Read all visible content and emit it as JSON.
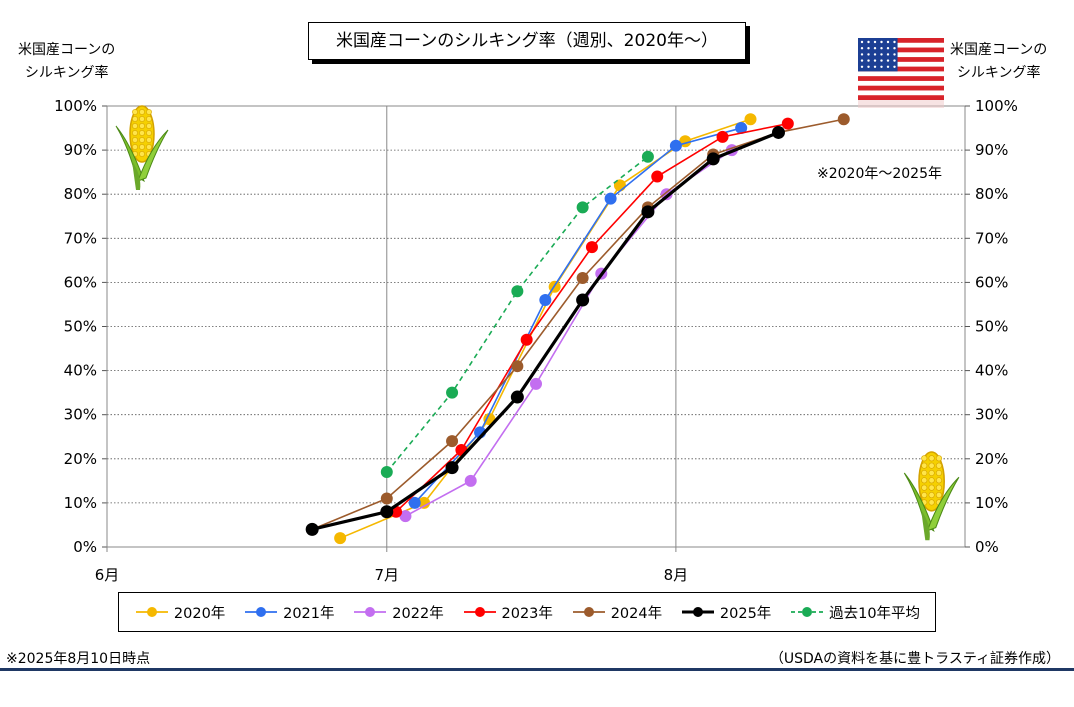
{
  "header": {
    "title": "米国産コーンのシルキング率（週別、2020年～）",
    "left_axis_title_line1": "米国産コーンの",
    "left_axis_title_line2": "シルキング率",
    "right_axis_title_line1": "米国産コーンの",
    "right_axis_title_line2": "シルキング率"
  },
  "annotations": {
    "range_note": "※2020年～2025年",
    "as_of": "※2025年8月10日時点",
    "source": "（USDAの資料を基に豊トラスティ証券作成）"
  },
  "icons": [
    "corn-icon",
    "us-flag-icon"
  ],
  "chart_data": {
    "type": "line",
    "x_axis": "date",
    "xlim": [
      "06-01",
      "09-01"
    ],
    "ylim": [
      0,
      100
    ],
    "y_ticks": [
      0,
      10,
      20,
      30,
      40,
      50,
      60,
      70,
      80,
      90,
      100
    ],
    "y_tick_labels": [
      "0%",
      "10%",
      "20%",
      "30%",
      "40%",
      "50%",
      "60%",
      "70%",
      "80%",
      "90%",
      "100%"
    ],
    "x_ticks": [
      "06-01",
      "07-01",
      "08-01"
    ],
    "x_tick_labels": [
      "6月",
      "7月",
      "8月"
    ],
    "grid": "horizontal dotted, vertical at month starts",
    "legend_position": "bottom",
    "series": [
      {
        "name": "2020年",
        "color": "#f5b800",
        "dashed": false,
        "bold": false,
        "points": [
          [
            "06-26",
            2
          ],
          [
            "07-05",
            10
          ],
          [
            "07-12",
            29
          ],
          [
            "07-19",
            59
          ],
          [
            "07-26",
            82
          ],
          [
            "08-02",
            92
          ],
          [
            "08-09",
            97
          ]
        ]
      },
      {
        "name": "2021年",
        "color": "#2f6fef",
        "dashed": false,
        "bold": false,
        "points": [
          [
            "07-04",
            10
          ],
          [
            "07-11",
            26
          ],
          [
            "07-18",
            56
          ],
          [
            "07-25",
            79
          ],
          [
            "08-01",
            91
          ],
          [
            "08-08",
            95
          ]
        ]
      },
      {
        "name": "2022年",
        "color": "#c36ef0",
        "dashed": false,
        "bold": false,
        "points": [
          [
            "07-03",
            7
          ],
          [
            "07-10",
            15
          ],
          [
            "07-17",
            37
          ],
          [
            "07-24",
            62
          ],
          [
            "07-31",
            80
          ],
          [
            "08-07",
            90
          ]
        ]
      },
      {
        "name": "2023年",
        "color": "#ff0000",
        "dashed": false,
        "bold": false,
        "points": [
          [
            "07-02",
            8
          ],
          [
            "07-09",
            22
          ],
          [
            "07-16",
            47
          ],
          [
            "07-23",
            68
          ],
          [
            "07-30",
            84
          ],
          [
            "08-06",
            93
          ],
          [
            "08-13",
            96
          ]
        ]
      },
      {
        "name": "2024年",
        "color": "#9c5b2c",
        "dashed": false,
        "bold": false,
        "points": [
          [
            "06-23",
            4
          ],
          [
            "07-01",
            11
          ],
          [
            "07-08",
            24
          ],
          [
            "07-15",
            41
          ],
          [
            "07-22",
            61
          ],
          [
            "07-29",
            77
          ],
          [
            "08-05",
            89
          ],
          [
            "08-12",
            94
          ],
          [
            "08-19",
            97
          ]
        ]
      },
      {
        "name": "2025年",
        "color": "#000000",
        "dashed": false,
        "bold": true,
        "points": [
          [
            "06-23",
            4
          ],
          [
            "07-01",
            8
          ],
          [
            "07-08",
            18
          ],
          [
            "07-15",
            34
          ],
          [
            "07-22",
            56
          ],
          [
            "07-29",
            76
          ],
          [
            "08-05",
            88
          ],
          [
            "08-12",
            94
          ]
        ]
      },
      {
        "name": "過去10年平均",
        "color": "#1aab55",
        "dashed": true,
        "bold": false,
        "points": [
          [
            "07-01",
            17
          ],
          [
            "07-08",
            35
          ],
          [
            "07-15",
            58
          ],
          [
            "07-22",
            77
          ],
          [
            "07-29",
            88.5
          ]
        ]
      }
    ]
  }
}
